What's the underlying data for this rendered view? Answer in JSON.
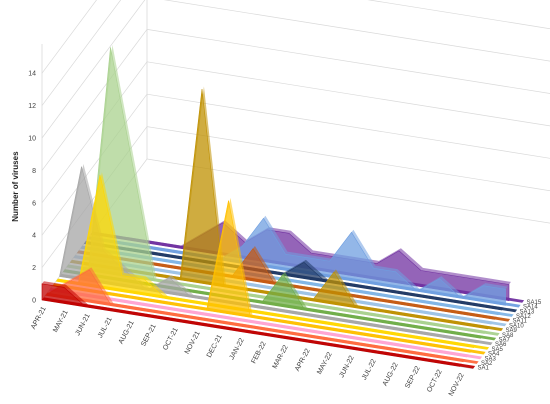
{
  "chart_data": {
    "type": "area",
    "mode": "3d-area",
    "ylabel": "Number of viruses",
    "ylim": [
      0,
      14
    ],
    "yticks": [
      0,
      2,
      4,
      6,
      8,
      10,
      12,
      14
    ],
    "grid": true,
    "categories": [
      "APR-21",
      "MAY-21",
      "JUN-21",
      "JUL-21",
      "AUG-21",
      "SEP-21",
      "OCT-21",
      "NOV-21",
      "DEC-21",
      "JAN-22",
      "FEB-22",
      "MAR-22",
      "APR-22",
      "MAY-22",
      "JUN-22",
      "JUL-22",
      "AUG-22",
      "SEP-22",
      "OCT-22",
      "NOV-22"
    ],
    "series": [
      {
        "name": "SA1",
        "color": "#c00000",
        "values": [
          1,
          1,
          0,
          0,
          0,
          0,
          0,
          0,
          0,
          0,
          0,
          0,
          0,
          0,
          0,
          0,
          0,
          0,
          0,
          0
        ]
      },
      {
        "name": "SA2",
        "color": "#ff6a3d",
        "values": [
          0,
          1,
          2,
          0,
          0,
          0,
          0,
          0,
          0,
          0,
          0,
          0,
          0,
          0,
          0,
          0,
          0,
          0,
          0,
          0
        ]
      },
      {
        "name": "SA3",
        "color": "#ffa4d2",
        "values": [
          0,
          0,
          0,
          0,
          0,
          0,
          0,
          0,
          0,
          0,
          0,
          0,
          0,
          0,
          0,
          0,
          0,
          0,
          0,
          0
        ]
      },
      {
        "name": "SA4",
        "color": "#ffc000",
        "values": [
          0,
          0,
          0,
          0,
          0,
          0,
          0,
          0,
          7,
          0,
          0,
          0,
          0,
          0,
          0,
          0,
          0,
          0,
          0,
          0
        ]
      },
      {
        "name": "SA5",
        "color": "#ffd700",
        "values": [
          0,
          0,
          7,
          1,
          1,
          0,
          0,
          0,
          0,
          0,
          0,
          0,
          0,
          0,
          0,
          0,
          0,
          0,
          0,
          0
        ]
      },
      {
        "name": "SA6",
        "color": "#a6a6a6",
        "values": [
          0,
          7,
          2,
          1,
          0,
          1,
          0,
          0,
          0,
          0,
          0,
          0,
          0,
          0,
          0,
          0,
          0,
          0,
          0,
          0
        ]
      },
      {
        "name": "SA7",
        "color": "#70ad47",
        "values": [
          0,
          0,
          0,
          0,
          0,
          0,
          0,
          0,
          0,
          0,
          2,
          0,
          0,
          0,
          0,
          0,
          0,
          0,
          0,
          0
        ]
      },
      {
        "name": "SA8",
        "color": "#a9d18e",
        "values": [
          0,
          0,
          14,
          7,
          0,
          0,
          0,
          0,
          0,
          0,
          0,
          0,
          0,
          0,
          0,
          0,
          0,
          0,
          0,
          0
        ]
      },
      {
        "name": "SA9",
        "color": "#bf9000",
        "values": [
          0,
          0,
          0,
          0,
          0,
          0,
          12,
          0,
          0,
          0,
          0,
          0,
          2,
          0,
          0,
          0,
          0,
          0,
          0,
          0
        ]
      },
      {
        "name": "SA10",
        "color": "#9dc3e6",
        "values": [
          0,
          0,
          0,
          0,
          0,
          0,
          0,
          0,
          0,
          0,
          0,
          0,
          0,
          0,
          0,
          0,
          0,
          0,
          0,
          0
        ]
      },
      {
        "name": "SA11",
        "color": "#c55a11",
        "values": [
          0,
          0,
          0,
          0,
          0,
          0,
          0,
          0,
          2,
          0,
          0,
          0,
          0,
          0,
          0,
          0,
          0,
          0,
          0,
          0
        ]
      },
      {
        "name": "SA12",
        "color": "#7fb4e6",
        "values": [
          0,
          0,
          0,
          0,
          0,
          0,
          0,
          0,
          0,
          0,
          0,
          0,
          0,
          0,
          0,
          0,
          0,
          0,
          0,
          0
        ]
      },
      {
        "name": "SA13",
        "color": "#1f3864",
        "values": [
          0,
          0,
          0,
          0,
          0,
          0,
          0,
          0,
          0,
          0,
          1,
          0,
          0,
          0,
          0,
          0,
          0,
          0,
          0,
          0
        ]
      },
      {
        "name": "SA14",
        "color": "#6f9fe0",
        "values": [
          0,
          0,
          0,
          0,
          0,
          0,
          0,
          1,
          3,
          1,
          1,
          1,
          3,
          1,
          1,
          0,
          1,
          0,
          1,
          1
        ]
      },
      {
        "name": "SA15",
        "color": "#7030a0",
        "values": [
          0,
          0,
          0,
          0,
          0,
          1,
          2,
          1,
          2,
          2,
          1,
          1,
          1,
          1,
          2,
          1,
          1,
          1,
          1,
          1
        ]
      }
    ]
  }
}
